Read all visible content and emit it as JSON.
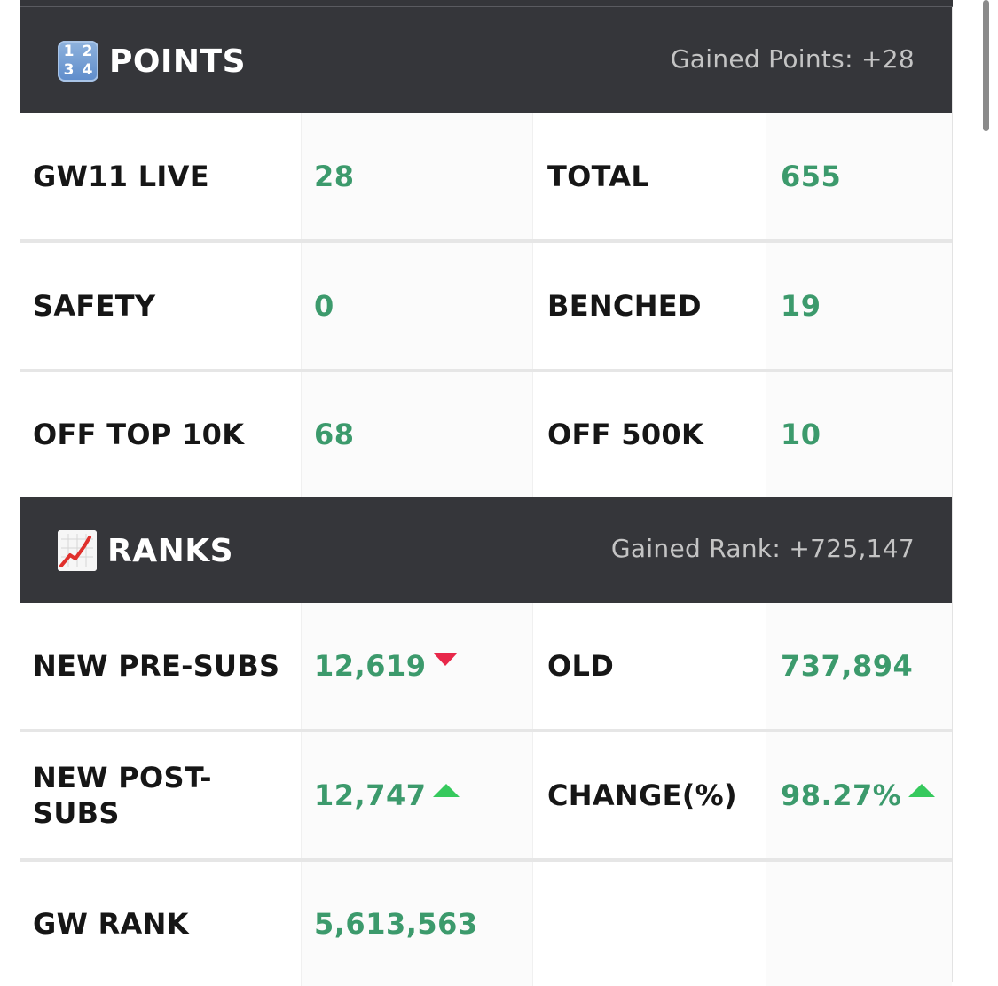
{
  "points": {
    "title": "POINTS",
    "gained": "Gained Points: +28",
    "icon": "numbers-1234-icon",
    "icon_digits": [
      "1",
      "2",
      "3",
      "4"
    ],
    "rows": [
      {
        "label_a": "GW11 LIVE",
        "value_a": "28",
        "label_b": "TOTAL",
        "value_b": "655"
      },
      {
        "label_a": "SAFETY",
        "value_a": "0",
        "label_b": "BENCHED",
        "value_b": "19"
      },
      {
        "label_a": "OFF TOP 10K",
        "value_a": "68",
        "label_b": "OFF 500K",
        "value_b": "10"
      }
    ]
  },
  "ranks": {
    "title": "RANKS",
    "gained": "Gained Rank: +725,147",
    "icon": "chart-increasing-icon",
    "rows": [
      {
        "label_a": "NEW PRE-SUBS",
        "value_a": "12,619",
        "trend_a": "down",
        "label_b": "OLD",
        "value_b": "737,894"
      },
      {
        "label_a": "NEW POST-SUBS",
        "value_a": "12,747",
        "trend_a": "up",
        "label_b": "CHANGE(%)",
        "value_b": "98.27%",
        "trend_b": "up"
      },
      {
        "label_a": "GW RANK",
        "value_a": "5,613,563",
        "label_b": "",
        "value_b": ""
      }
    ]
  },
  "colors": {
    "header_bg": "#35363a",
    "value_green": "#3c9a6c",
    "trend_up": "#36c95d",
    "trend_down": "#e8284a"
  }
}
